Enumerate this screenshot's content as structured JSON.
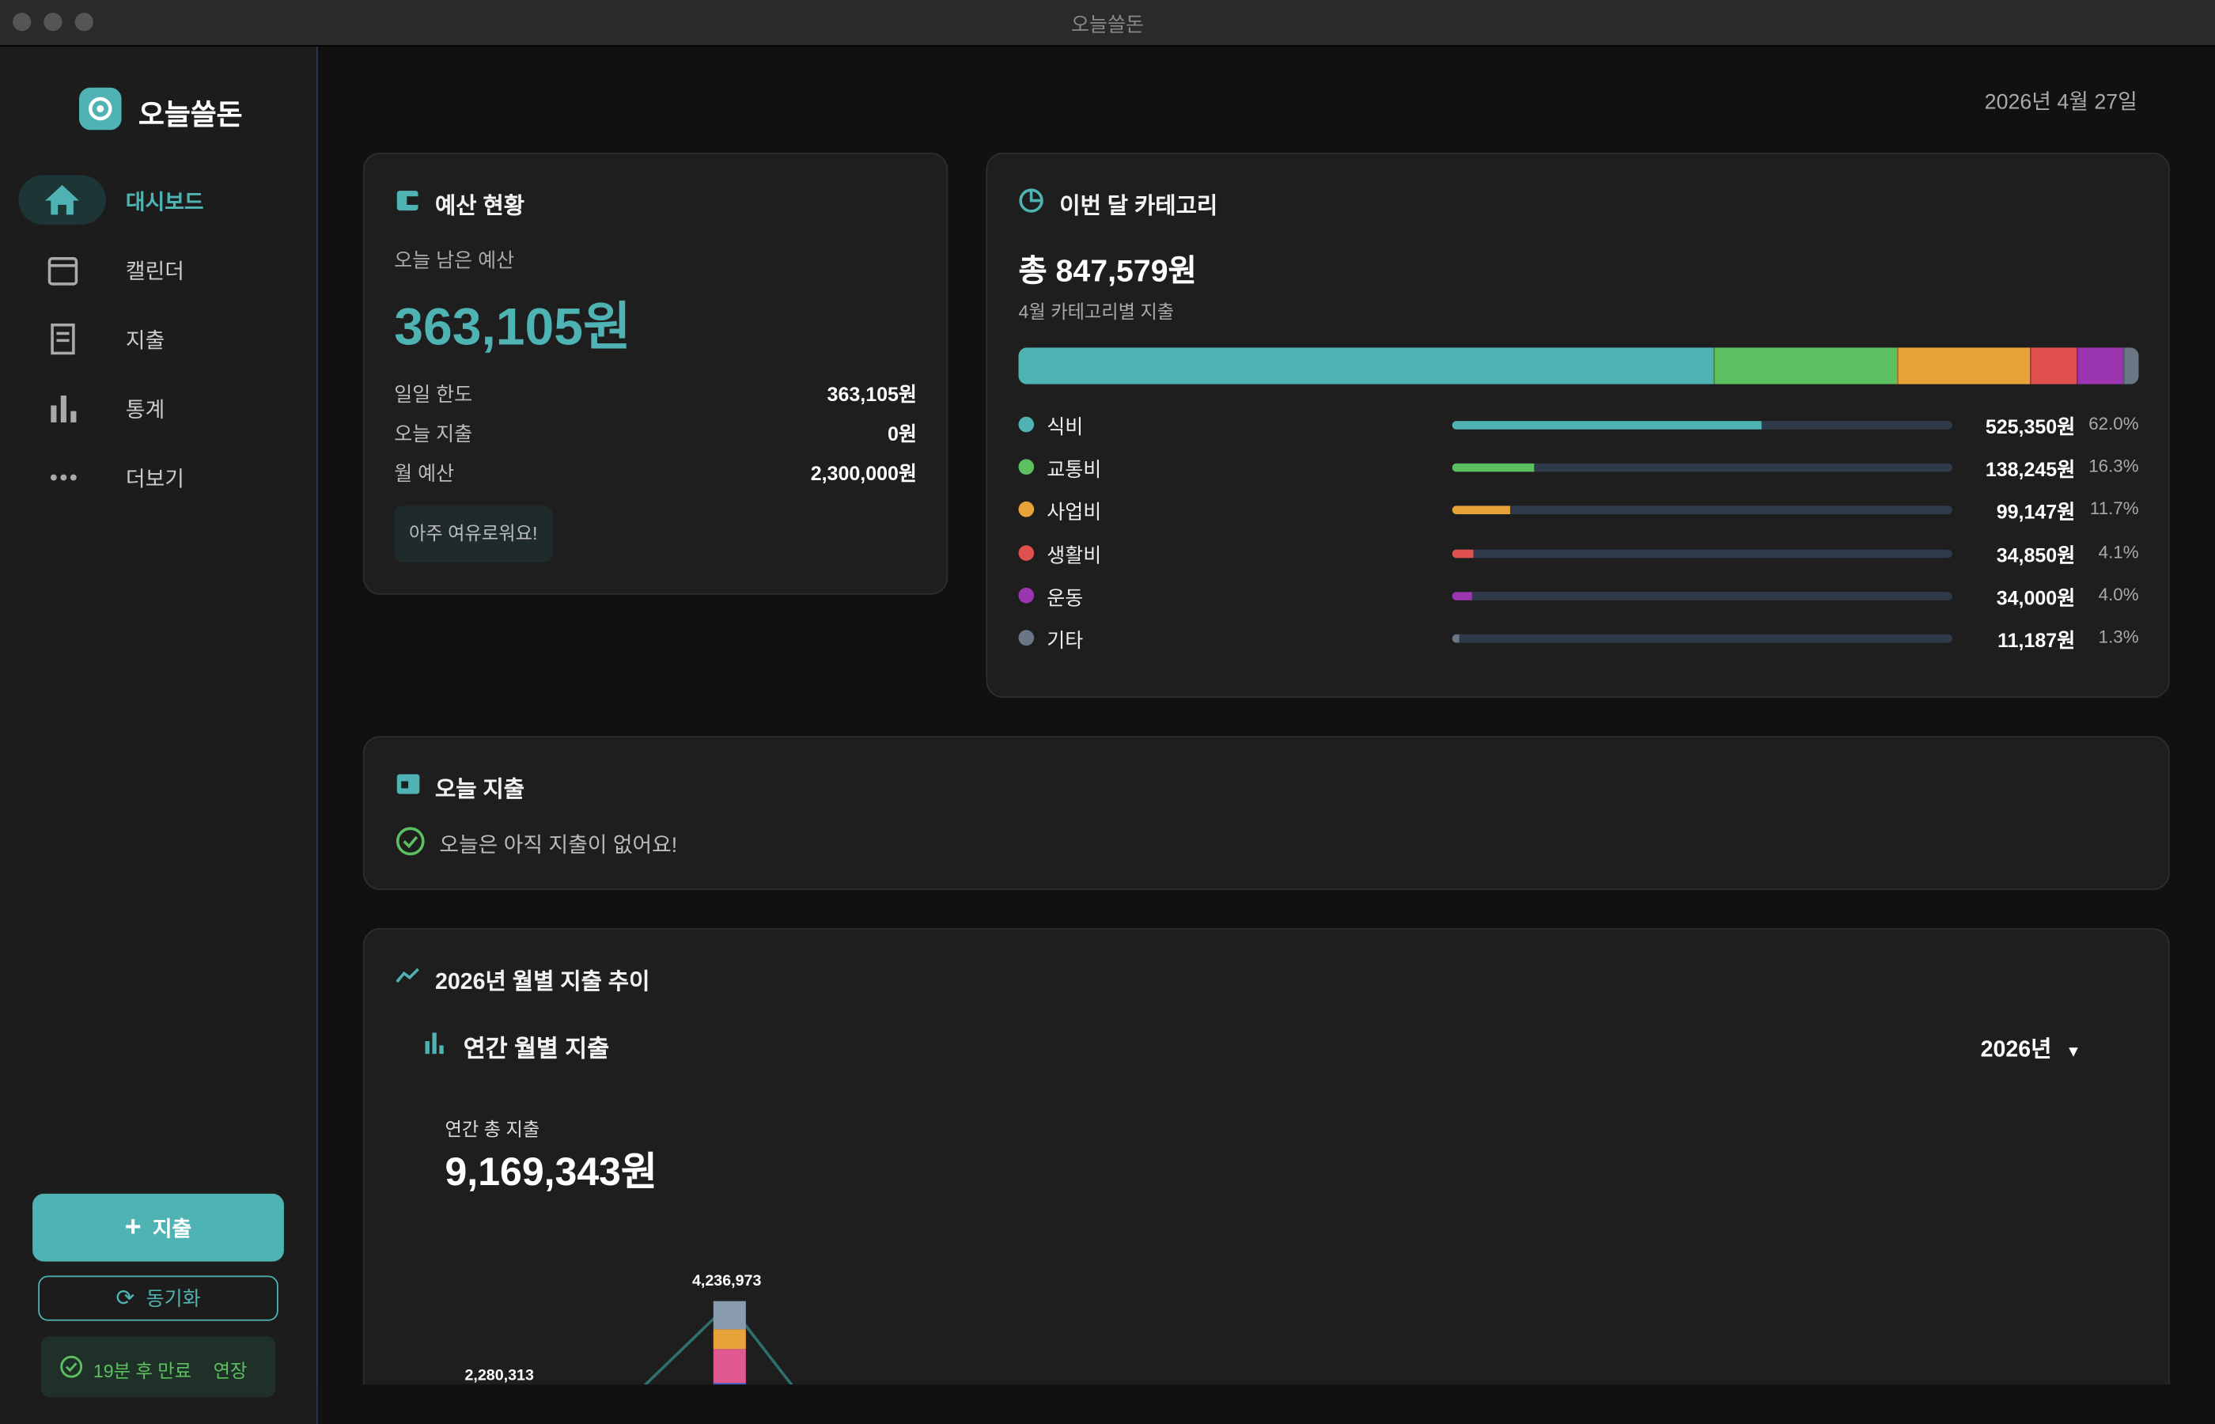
{
  "window_title": "오늘쓸돈",
  "sidebar": {
    "app_name": "오늘쓸돈",
    "nav": [
      "대시보드",
      "캘린더",
      "지출",
      "통계",
      "더보기"
    ],
    "add_button": "지출",
    "sync_button": "동기화",
    "session": {
      "status": "19분 후 만료",
      "action": "연장"
    }
  },
  "date": "2026년 4월 27일",
  "budget": {
    "title": "예산 현황",
    "remaining_label": "오늘 남은 예산",
    "remaining": "363,105원",
    "rows": [
      {
        "label": "일일 한도",
        "value": "363,105원"
      },
      {
        "label": "오늘 지출",
        "value": "0원"
      },
      {
        "label": "월 예산",
        "value": "2,300,000원"
      }
    ],
    "badge": "아주 여유로워요!"
  },
  "category": {
    "title": "이번 달 카테고리",
    "total": "총 847,579원",
    "subtitle": "4월 카테고리별 지출",
    "items": [
      {
        "name": "식비",
        "color": "#4fb3b3",
        "amount": "525,350원",
        "percent": 62,
        "percent_label": "62.0%"
      },
      {
        "name": "교통비",
        "color": "#5cc060",
        "amount": "138,245원",
        "percent": 16.3,
        "percent_label": "16.3%"
      },
      {
        "name": "사업비",
        "color": "#e8a23a",
        "amount": "99,147원",
        "percent": 11.7,
        "percent_label": "11.7%"
      },
      {
        "name": "생활비",
        "color": "#e0504c",
        "amount": "34,850원",
        "percent": 4.1,
        "percent_label": "4.1%"
      },
      {
        "name": "운동",
        "color": "#9b35b0",
        "amount": "34,000원",
        "percent": 4,
        "percent_label": "4.0%"
      },
      {
        "name": "기타",
        "color": "#6b7786",
        "amount": "11,187원",
        "percent": 1.3,
        "percent_label": "1.3%"
      }
    ]
  },
  "today": {
    "title": "오늘 지출",
    "message": "오늘은 아직 지출이 없어요!"
  },
  "trend": {
    "title": "2026년 월별 지출 추이",
    "subtitle": "연간 월별 지출",
    "year_select": "2026년",
    "total_label": "연간 총 지출",
    "total": "9,169,343원",
    "visible_labels": [
      "2,280,313",
      "4,236,973"
    ]
  }
}
